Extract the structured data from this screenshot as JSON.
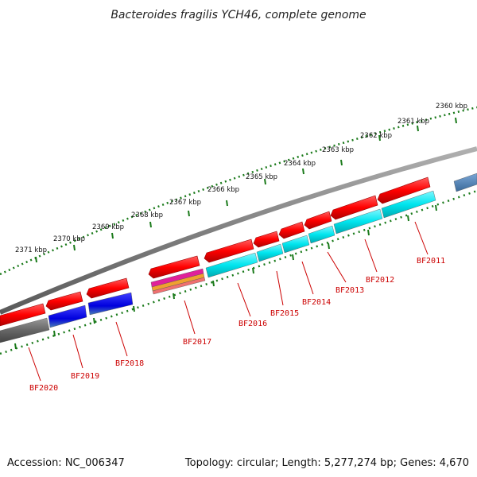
{
  "title": "Bacteroides fragilis YCH46, complete genome",
  "footer": {
    "accession": "Accession: NC_006347",
    "summary": "Topology: circular; Length: 5,277,274 bp; Genes: 4,670"
  },
  "scale": {
    "unit": "kbp",
    "labels": [
      "2360 kbp",
      "2361 kbp",
      "2362 kbp",
      "2363 kbp",
      "2364 kbp",
      "2365 kbp",
      "2366 kbp",
      "2367 kbp",
      "2368 kbp",
      "2369 kbp",
      "2370 kbp",
      "2371 kbp"
    ]
  },
  "genes": [
    "BF2011",
    "BF2012",
    "BF2013",
    "BF2014",
    "BF2015",
    "BF2016",
    "BF2017",
    "BF2018",
    "BF2019",
    "BF2020"
  ],
  "colors": {
    "backbone": "#808080",
    "cds": "#ff0000",
    "scale_ticks": "#1a7a1a",
    "gene_label": "#cc0000",
    "feature_cyan": "#00e5ee",
    "feature_blue": "#0000dd",
    "feature_steel": "#4a7fb5",
    "feature_gray": "#666666",
    "feature_magenta": "#e0209a",
    "feature_orange": "#f0a030"
  }
}
